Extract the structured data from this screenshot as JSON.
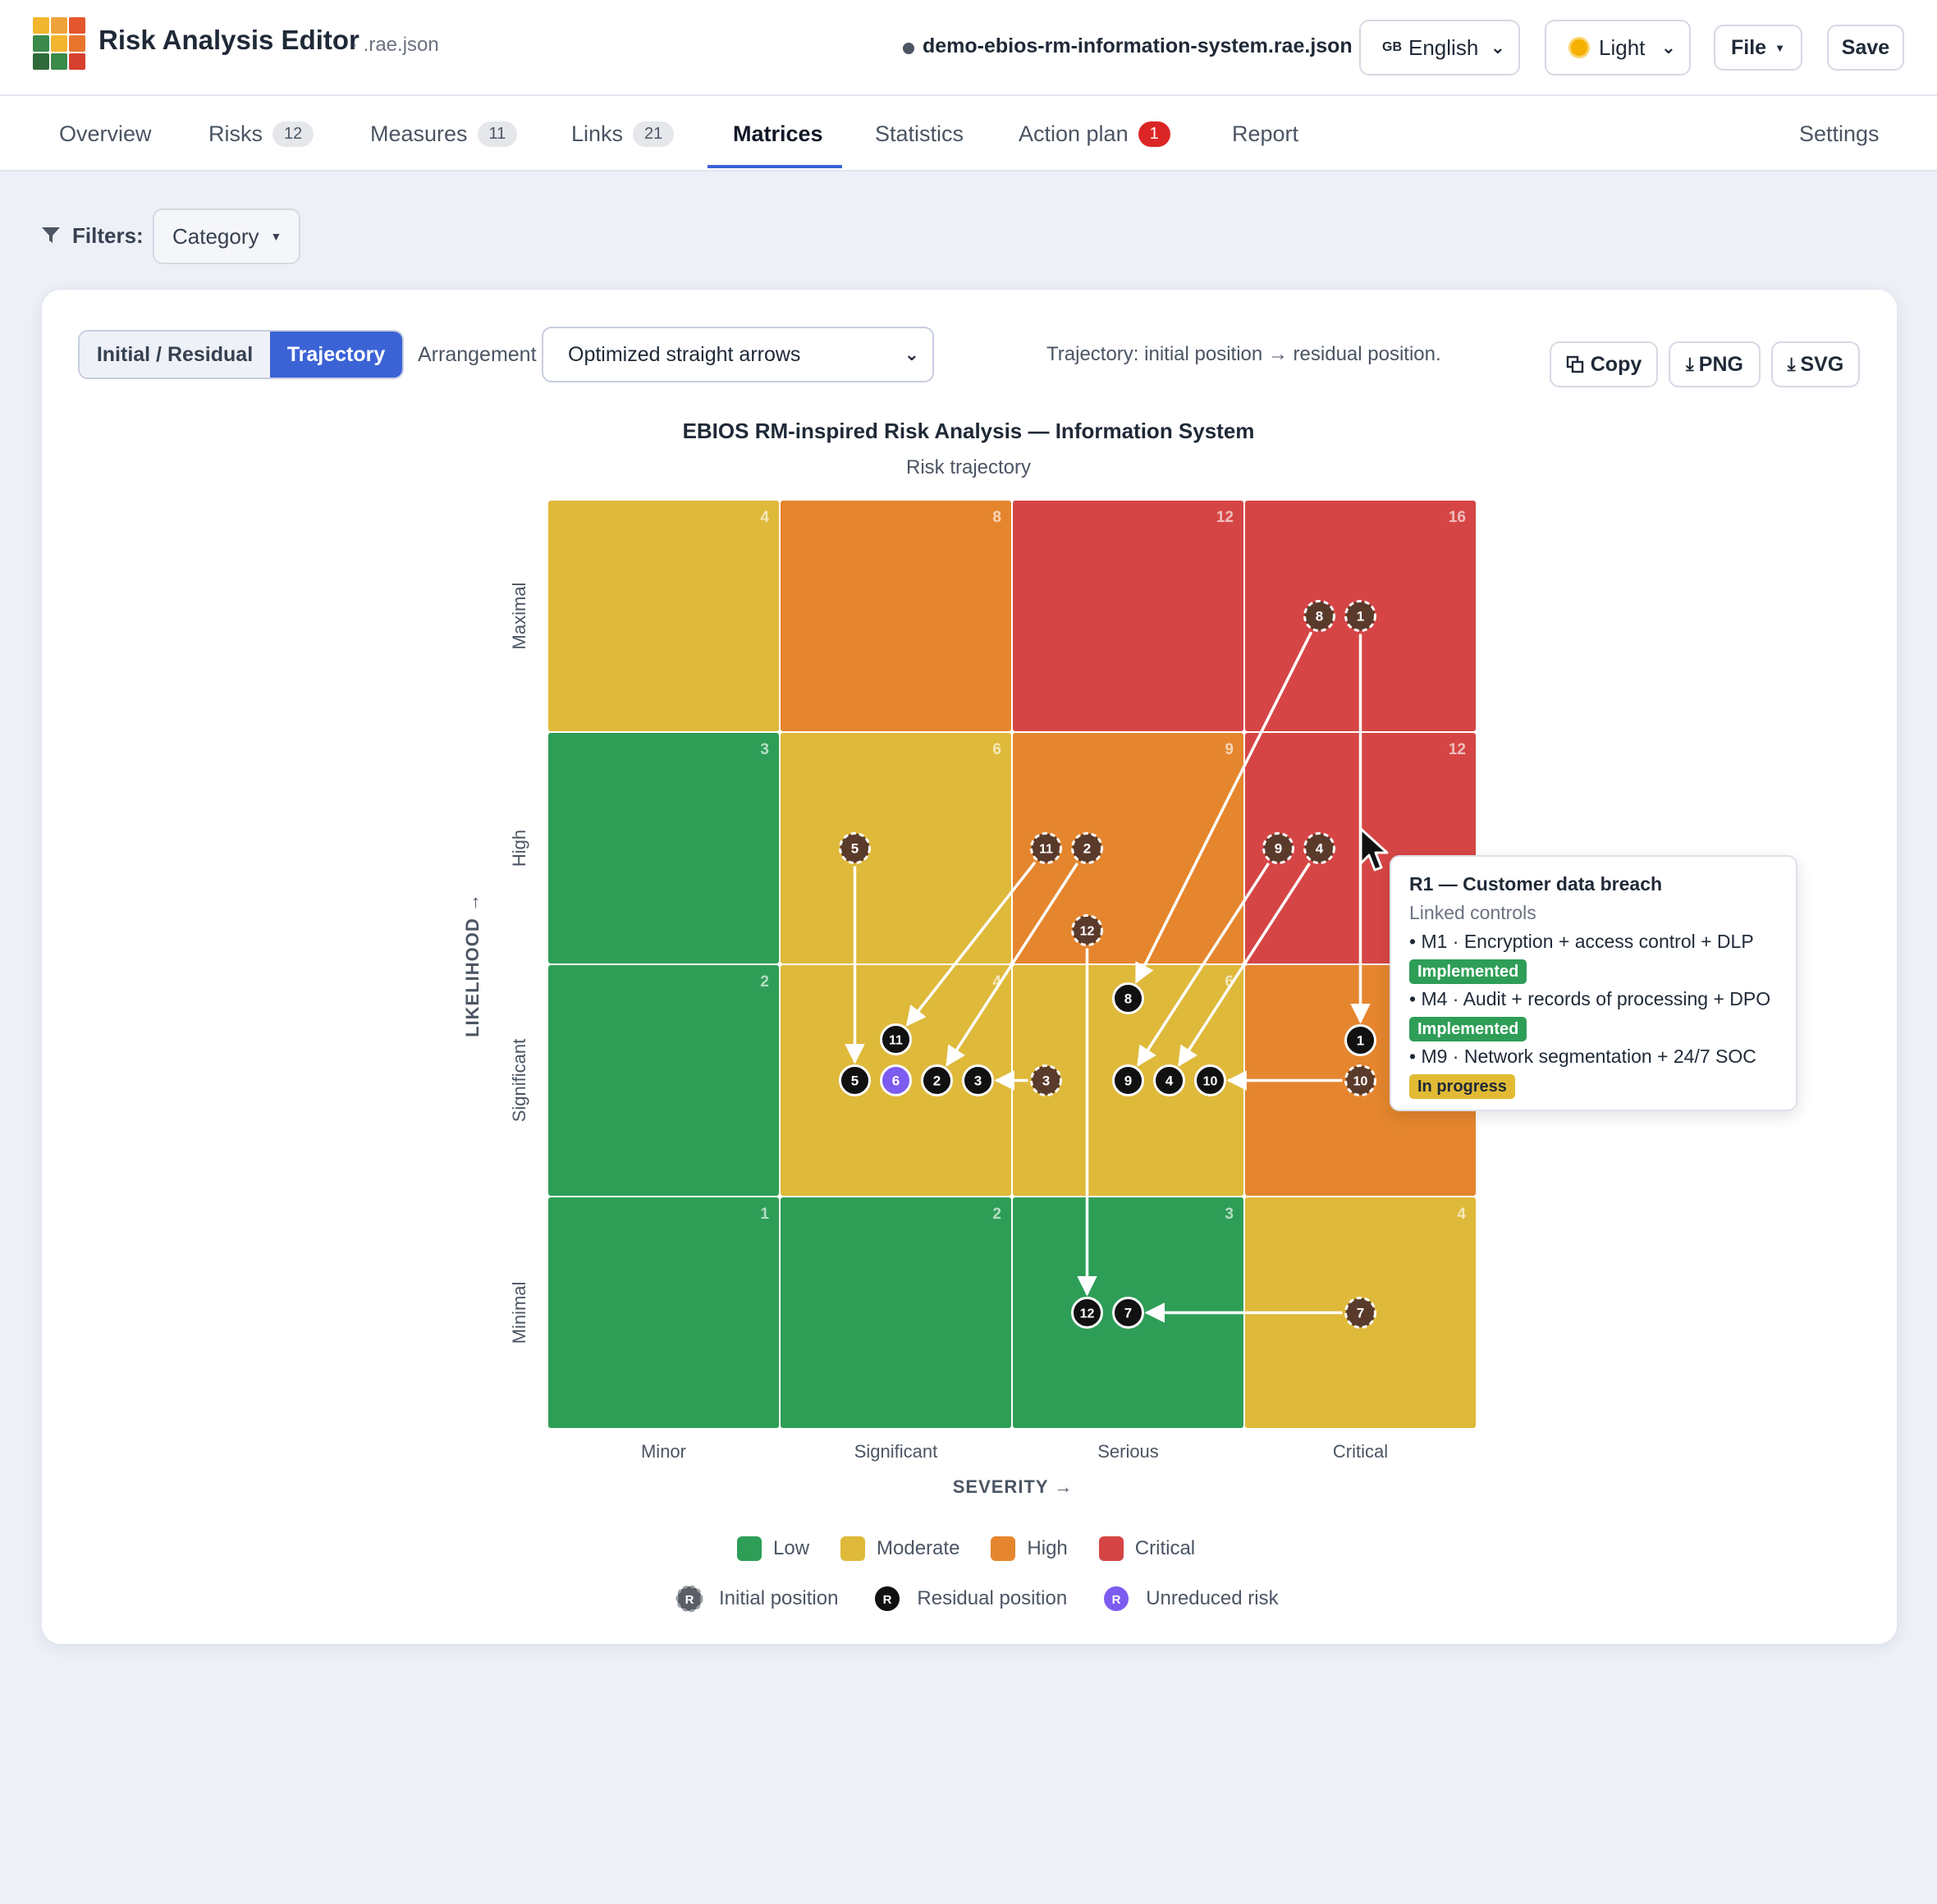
{
  "header": {
    "app_title": "Risk Analysis Editor",
    "app_ext": ".rae.json",
    "filename": "demo-ebios-rm-information-system.rae.json",
    "language_flag": "GB",
    "language": "English",
    "theme": "Light",
    "file_label": "File",
    "save_label": "Save"
  },
  "tabs": [
    {
      "label": "Overview",
      "count": null
    },
    {
      "label": "Risks",
      "count": "12"
    },
    {
      "label": "Measures",
      "count": "11"
    },
    {
      "label": "Links",
      "count": "21"
    },
    {
      "label": "Matrices",
      "count": null,
      "active": true
    },
    {
      "label": "Statistics",
      "count": null
    },
    {
      "label": "Action plan",
      "count": "1"
    },
    {
      "label": "Report",
      "count": null
    },
    {
      "label": "Settings",
      "count": null
    }
  ],
  "filters": {
    "label": "Filters:",
    "category": "Category"
  },
  "toolbar": {
    "mode_initial_residual": "Initial / Residual",
    "mode_trajectory": "Trajectory",
    "arrangement_label": "Arrangement",
    "arrangement_value": "Optimized straight arrows",
    "hint": "Trajectory: initial position → residual position.",
    "copy": "Copy",
    "png": "PNG",
    "svg": "SVG"
  },
  "chart_data": {
    "type": "heatmap",
    "title": "EBIOS RM-inspired Risk Analysis — Information System",
    "subtitle": "Risk trajectory",
    "xlabel": "SEVERITY →",
    "ylabel": "LIKELIHOOD →",
    "x_categories": [
      "Minor",
      "Significant",
      "Serious",
      "Critical"
    ],
    "y_categories": [
      "Minimal",
      "Significant",
      "High",
      "Maximal"
    ],
    "cells": [
      {
        "x": 1,
        "y": 1,
        "score": 1,
        "level": "Low"
      },
      {
        "x": 2,
        "y": 1,
        "score": 2,
        "level": "Low"
      },
      {
        "x": 3,
        "y": 1,
        "score": 3,
        "level": "Low"
      },
      {
        "x": 4,
        "y": 1,
        "score": 4,
        "level": "Moderate"
      },
      {
        "x": 1,
        "y": 2,
        "score": 2,
        "level": "Low"
      },
      {
        "x": 2,
        "y": 2,
        "score": 4,
        "level": "Moderate"
      },
      {
        "x": 3,
        "y": 2,
        "score": 6,
        "level": "Moderate"
      },
      {
        "x": 4,
        "y": 2,
        "score": 8,
        "level": "High"
      },
      {
        "x": 1,
        "y": 3,
        "score": 3,
        "level": "Low"
      },
      {
        "x": 2,
        "y": 3,
        "score": 6,
        "level": "Moderate"
      },
      {
        "x": 3,
        "y": 3,
        "score": 9,
        "level": "High"
      },
      {
        "x": 4,
        "y": 3,
        "score": 12,
        "level": "Critical"
      },
      {
        "x": 1,
        "y": 4,
        "score": 4,
        "level": "Moderate"
      },
      {
        "x": 2,
        "y": 4,
        "score": 8,
        "level": "High"
      },
      {
        "x": 3,
        "y": 4,
        "score": 12,
        "level": "Critical"
      },
      {
        "x": 4,
        "y": 4,
        "score": 16,
        "level": "Critical"
      }
    ],
    "risks": [
      {
        "id": "1",
        "initial": {
          "severity": 4,
          "likelihood": 4
        },
        "residual": {
          "severity": 4,
          "likelihood": 2
        }
      },
      {
        "id": "2",
        "initial": {
          "severity": 3,
          "likelihood": 3
        },
        "residual": {
          "severity": 2,
          "likelihood": 2
        }
      },
      {
        "id": "3",
        "initial": {
          "severity": 3,
          "likelihood": 2
        },
        "residual": {
          "severity": 2,
          "likelihood": 2
        }
      },
      {
        "id": "4",
        "initial": {
          "severity": 4,
          "likelihood": 3
        },
        "residual": {
          "severity": 3,
          "likelihood": 2
        }
      },
      {
        "id": "5",
        "initial": {
          "severity": 2,
          "likelihood": 3
        },
        "residual": {
          "severity": 2,
          "likelihood": 2
        }
      },
      {
        "id": "6",
        "unreduced": true,
        "residual": {
          "severity": 2,
          "likelihood": 2
        }
      },
      {
        "id": "7",
        "initial": {
          "severity": 4,
          "likelihood": 1
        },
        "residual": {
          "severity": 3,
          "likelihood": 1
        }
      },
      {
        "id": "8",
        "initial": {
          "severity": 4,
          "likelihood": 4
        },
        "residual": {
          "severity": 3,
          "likelihood": 2
        }
      },
      {
        "id": "9",
        "initial": {
          "severity": 4,
          "likelihood": 3
        },
        "residual": {
          "severity": 3,
          "likelihood": 2
        }
      },
      {
        "id": "10",
        "initial": {
          "severity": 4,
          "likelihood": 2
        },
        "residual": {
          "severity": 3,
          "likelihood": 2
        }
      },
      {
        "id": "11",
        "initial": {
          "severity": 3,
          "likelihood": 3
        },
        "residual": {
          "severity": 2,
          "likelihood": 2
        }
      },
      {
        "id": "12",
        "initial": {
          "severity": 3,
          "likelihood": 3
        },
        "residual": {
          "severity": 3,
          "likelihood": 1
        }
      }
    ],
    "level_colors": {
      "Low": "#2e9e57",
      "Moderate": "#dfb93a",
      "High": "#e5862e",
      "Critical": "#d64545"
    },
    "legend": [
      "Low",
      "Moderate",
      "High",
      "Critical"
    ],
    "marker_legend": {
      "initial": "Initial position",
      "residual": "Residual position",
      "unreduced": "Unreduced risk",
      "marker_letter": "R"
    }
  },
  "tooltip": {
    "title": "R1 — Customer data breach",
    "subtitle": "Linked controls",
    "controls": [
      {
        "text": "• M1 · Encryption + access control + DLP",
        "status": "Implemented"
      },
      {
        "text": "• M4 · Audit + records of processing + DPO",
        "status": "Implemented"
      },
      {
        "text": "• M9 · Network segmentation + 24/7 SOC",
        "status": "In progress"
      }
    ]
  },
  "colors": {
    "accent": "#3b63d6",
    "residual_marker": "#111111",
    "unreduced_marker": "#7c5cf0",
    "initial_marker": "#5a3a2a"
  }
}
